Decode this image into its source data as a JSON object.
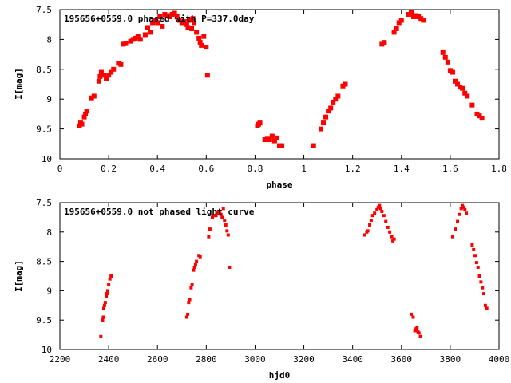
{
  "chart_data": [
    {
      "type": "scatter",
      "title": "195656+0559.0 phased with P=337.0day",
      "xlabel": "phase",
      "ylabel": "I[mag]",
      "xlim": [
        0,
        1.8
      ],
      "ylim": [
        10,
        7.5
      ],
      "y_inverted": true,
      "xticks": [
        "0",
        "0.2",
        "0.4",
        "0.6",
        "0.8",
        "1",
        "1.2",
        "1.4",
        "1.6",
        "1.8"
      ],
      "yticks": [
        "7.5",
        "8",
        "8.5",
        "9",
        "9.5",
        "10"
      ],
      "marker_color": "#ff0000",
      "series": [
        {
          "points": [
            [
              0.08,
              9.45
            ],
            [
              0.085,
              9.4
            ],
            [
              0.09,
              9.42
            ],
            [
              0.1,
              9.3
            ],
            [
              0.105,
              9.25
            ],
            [
              0.11,
              9.2
            ],
            [
              0.13,
              8.98
            ],
            [
              0.14,
              8.95
            ],
            [
              0.16,
              8.7
            ],
            [
              0.165,
              8.62
            ],
            [
              0.17,
              8.55
            ],
            [
              0.18,
              8.6
            ],
            [
              0.19,
              8.65
            ],
            [
              0.2,
              8.6
            ],
            [
              0.21,
              8.55
            ],
            [
              0.22,
              8.5
            ],
            [
              0.24,
              8.4
            ],
            [
              0.25,
              8.42
            ],
            [
              0.26,
              8.08
            ],
            [
              0.27,
              8.07
            ],
            [
              0.29,
              8.03
            ],
            [
              0.3,
              8.0
            ],
            [
              0.31,
              7.98
            ],
            [
              0.32,
              7.95
            ],
            [
              0.33,
              8.0
            ],
            [
              0.35,
              7.92
            ],
            [
              0.36,
              7.8
            ],
            [
              0.37,
              7.88
            ],
            [
              0.38,
              7.72
            ],
            [
              0.39,
              7.68
            ],
            [
              0.4,
              7.72
            ],
            [
              0.41,
              7.62
            ],
            [
              0.42,
              7.78
            ],
            [
              0.43,
              7.58
            ],
            [
              0.44,
              7.6
            ],
            [
              0.45,
              7.62
            ],
            [
              0.46,
              7.58
            ],
            [
              0.47,
              7.56
            ],
            [
              0.48,
              7.62
            ],
            [
              0.49,
              7.68
            ],
            [
              0.5,
              7.72
            ],
            [
              0.51,
              7.7
            ],
            [
              0.52,
              7.75
            ],
            [
              0.525,
              7.8
            ],
            [
              0.53,
              7.68
            ],
            [
              0.54,
              7.82
            ],
            [
              0.545,
              7.65
            ],
            [
              0.55,
              7.72
            ],
            [
              0.56,
              7.88
            ],
            [
              0.57,
              7.98
            ],
            [
              0.575,
              8.05
            ],
            [
              0.58,
              8.1
            ],
            [
              0.59,
              7.95
            ],
            [
              0.6,
              8.13
            ],
            [
              0.605,
              8.6
            ],
            [
              0.81,
              9.45
            ],
            [
              0.815,
              9.42
            ],
            [
              0.82,
              9.4
            ],
            [
              0.84,
              9.68
            ],
            [
              0.85,
              9.67
            ],
            [
              0.86,
              9.68
            ],
            [
              0.87,
              9.62
            ],
            [
              0.88,
              9.7
            ],
            [
              0.89,
              9.65
            ],
            [
              0.9,
              9.78
            ],
            [
              0.91,
              9.78
            ],
            [
              1.04,
              9.78
            ],
            [
              1.07,
              9.5
            ],
            [
              1.08,
              9.4
            ],
            [
              1.09,
              9.3
            ],
            [
              1.1,
              9.2
            ],
            [
              1.11,
              9.15
            ],
            [
              1.12,
              9.05
            ],
            [
              1.13,
              9.0
            ],
            [
              1.14,
              8.95
            ],
            [
              1.16,
              8.78
            ],
            [
              1.17,
              8.75
            ],
            [
              1.32,
              8.08
            ],
            [
              1.33,
              8.05
            ],
            [
              1.37,
              7.88
            ],
            [
              1.38,
              7.82
            ],
            [
              1.39,
              7.72
            ],
            [
              1.4,
              7.68
            ],
            [
              1.43,
              7.58
            ],
            [
              1.44,
              7.55
            ],
            [
              1.45,
              7.62
            ],
            [
              1.46,
              7.6
            ],
            [
              1.47,
              7.62
            ],
            [
              1.48,
              7.65
            ],
            [
              1.49,
              7.68
            ],
            [
              1.57,
              8.22
            ],
            [
              1.58,
              8.3
            ],
            [
              1.59,
              8.38
            ],
            [
              1.6,
              8.52
            ],
            [
              1.61,
              8.55
            ],
            [
              1.62,
              8.7
            ],
            [
              1.63,
              8.75
            ],
            [
              1.64,
              8.8
            ],
            [
              1.65,
              8.82
            ],
            [
              1.66,
              8.9
            ],
            [
              1.67,
              8.95
            ],
            [
              1.69,
              9.1
            ],
            [
              1.71,
              9.25
            ],
            [
              1.72,
              9.28
            ],
            [
              1.73,
              9.32
            ]
          ]
        }
      ]
    },
    {
      "type": "scatter",
      "title": "195656+0559.0 not phased light curve",
      "xlabel": "hjd0",
      "ylabel": "I[mag]",
      "xlim": [
        2200,
        4000
      ],
      "ylim": [
        10,
        7.5
      ],
      "y_inverted": true,
      "xticks": [
        "2200",
        "2400",
        "2600",
        "2800",
        "3000",
        "3200",
        "3400",
        "3600",
        "3800",
        "4000"
      ],
      "yticks": [
        "7.5",
        "8",
        "8.5",
        "9",
        "9.5",
        "10"
      ],
      "marker_color": "#ff0000",
      "series": [
        {
          "points": [
            [
              2368,
              9.78
            ],
            [
              2375,
              9.5
            ],
            [
              2378,
              9.45
            ],
            [
              2380,
              9.3
            ],
            [
              2383,
              9.25
            ],
            [
              2386,
              9.2
            ],
            [
              2390,
              9.1
            ],
            [
              2393,
              9.05
            ],
            [
              2396,
              9.0
            ],
            [
              2400,
              8.9
            ],
            [
              2405,
              8.8
            ],
            [
              2410,
              8.75
            ],
            [
              2720,
              9.45
            ],
            [
              2724,
              9.4
            ],
            [
              2728,
              9.2
            ],
            [
              2732,
              9.15
            ],
            [
              2738,
              8.95
            ],
            [
              2742,
              8.9
            ],
            [
              2748,
              8.65
            ],
            [
              2752,
              8.6
            ],
            [
              2756,
              8.55
            ],
            [
              2760,
              8.5
            ],
            [
              2770,
              8.4
            ],
            [
              2775,
              8.42
            ],
            [
              2810,
              8.08
            ],
            [
              2815,
              7.95
            ],
            [
              2825,
              7.75
            ],
            [
              2830,
              7.72
            ],
            [
              2840,
              7.72
            ],
            [
              2845,
              7.68
            ],
            [
              2850,
              7.65
            ],
            [
              2855,
              7.68
            ],
            [
              2860,
              7.7
            ],
            [
              2865,
              7.75
            ],
            [
              2870,
              7.6
            ],
            [
              2875,
              7.8
            ],
            [
              2880,
              7.88
            ],
            [
              2885,
              7.98
            ],
            [
              2890,
              8.05
            ],
            [
              2895,
              8.6
            ],
            [
              3450,
              8.05
            ],
            [
              3458,
              8.0
            ],
            [
              3462,
              7.98
            ],
            [
              3470,
              7.88
            ],
            [
              3476,
              7.8
            ],
            [
              3482,
              7.72
            ],
            [
              3490,
              7.68
            ],
            [
              3500,
              7.62
            ],
            [
              3505,
              7.58
            ],
            [
              3510,
              7.55
            ],
            [
              3515,
              7.6
            ],
            [
              3520,
              7.65
            ],
            [
              3528,
              7.72
            ],
            [
              3536,
              7.82
            ],
            [
              3544,
              7.92
            ],
            [
              3552,
              8.0
            ],
            [
              3560,
              8.08
            ],
            [
              3565,
              8.15
            ],
            [
              3570,
              8.12
            ],
            [
              3640,
              9.4
            ],
            [
              3648,
              9.45
            ],
            [
              3655,
              9.68
            ],
            [
              3660,
              9.65
            ],
            [
              3664,
              9.62
            ],
            [
              3668,
              9.7
            ],
            [
              3672,
              9.72
            ],
            [
              3678,
              9.78
            ],
            [
              3810,
              8.08
            ],
            [
              3820,
              7.95
            ],
            [
              3830,
              7.82
            ],
            [
              3838,
              7.7
            ],
            [
              3845,
              7.6
            ],
            [
              3850,
              7.55
            ],
            [
              3855,
              7.58
            ],
            [
              3860,
              7.62
            ],
            [
              3866,
              7.68
            ],
            [
              3890,
              8.22
            ],
            [
              3896,
              8.3
            ],
            [
              3902,
              8.4
            ],
            [
              3908,
              8.52
            ],
            [
              3914,
              8.6
            ],
            [
              3920,
              8.75
            ],
            [
              3926,
              8.85
            ],
            [
              3932,
              8.95
            ],
            [
              3938,
              9.05
            ],
            [
              3944,
              9.25
            ],
            [
              3950,
              9.3
            ]
          ]
        }
      ]
    }
  ]
}
